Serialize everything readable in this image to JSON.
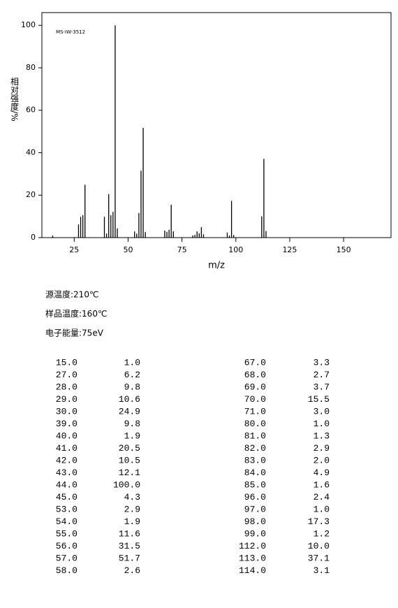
{
  "chart_data": {
    "type": "bar",
    "annotation": "MS-IW-3512",
    "ylabel": "相对强度/%",
    "xlabel": "m/z",
    "xlim": [
      10,
      172
    ],
    "xticks": [
      25,
      50,
      75,
      100,
      125,
      150
    ],
    "ylim": [
      0,
      106
    ],
    "yticks": [
      0,
      20,
      40,
      60,
      80,
      100
    ],
    "color": "#000000",
    "x": [
      15,
      27,
      28,
      29,
      30,
      39,
      40,
      41,
      42,
      43,
      44,
      45,
      53,
      54,
      55,
      56,
      57,
      58,
      67,
      68,
      69,
      70,
      71,
      80,
      81,
      82,
      83,
      84,
      85,
      96,
      97,
      98,
      99,
      112,
      113,
      114
    ],
    "x_labels": [
      "15.0",
      "27.0",
      "28.0",
      "29.0",
      "30.0",
      "39.0",
      "40.0",
      "41.0",
      "42.0",
      "43.0",
      "44.0",
      "45.0",
      "53.0",
      "54.0",
      "55.0",
      "56.0",
      "57.0",
      "58.0",
      "67.0",
      "68.0",
      "69.0",
      "70.0",
      "71.0",
      "80.0",
      "81.0",
      "82.0",
      "83.0",
      "84.0",
      "85.0",
      "96.0",
      "97.0",
      "98.0",
      "99.0",
      "112.0",
      "113.0",
      "114.0"
    ],
    "values": [
      1.0,
      6.2,
      9.8,
      10.6,
      24.9,
      9.8,
      1.9,
      20.5,
      10.5,
      12.1,
      100.0,
      4.3,
      2.9,
      1.9,
      11.6,
      31.5,
      51.7,
      2.6,
      3.3,
      2.7,
      3.7,
      15.5,
      3.0,
      1.0,
      1.3,
      2.9,
      2.0,
      4.9,
      1.6,
      2.4,
      1.0,
      17.3,
      1.2,
      10.0,
      37.1,
      3.1
    ],
    "value_labels": [
      "1.0",
      "6.2",
      "9.8",
      "10.6",
      "24.9",
      "9.8",
      "1.9",
      "20.5",
      "10.5",
      "12.1",
      "100.0",
      "4.3",
      "2.9",
      "1.9",
      "11.6",
      "31.5",
      "51.7",
      "2.6",
      "3.3",
      "2.7",
      "3.7",
      "15.5",
      "3.0",
      "1.0",
      "1.3",
      "2.9",
      "2.0",
      "4.9",
      "1.6",
      "2.4",
      "1.0",
      "17.3",
      "1.2",
      "10.0",
      "37.1",
      "3.1"
    ]
  },
  "info": [
    "源温度:210℃",
    "样品温度:160℃",
    "电子能量:75eV"
  ]
}
